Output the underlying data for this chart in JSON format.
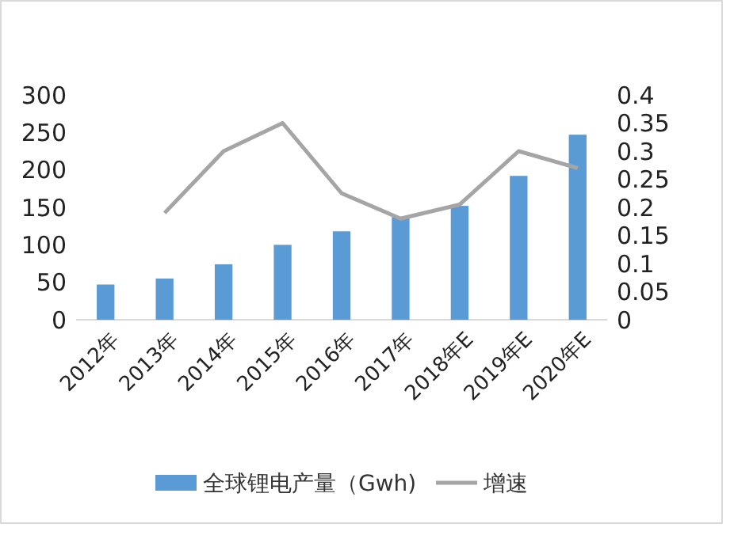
{
  "chart_data": {
    "type": "bar",
    "categories": [
      "2012年",
      "2013年",
      "2014年",
      "2015年",
      "2016年",
      "2017年",
      "2018年E",
      "2019年E",
      "2020年E"
    ],
    "series": [
      {
        "name": "全球锂电产量（Gwh)",
        "color": "#5b9bd5",
        "values": [
          47,
          55,
          74,
          100,
          118,
          137,
          152,
          192,
          247
        ]
      },
      {
        "name": "增速",
        "type": "line",
        "axis": "y2",
        "color": "#a5a5a5",
        "values": [
          null,
          0.19,
          0.3,
          0.35,
          0.225,
          0.18,
          0.205,
          0.3,
          0.27
        ]
      }
    ],
    "ylim": [
      0,
      300
    ],
    "yticks": [
      0,
      50,
      100,
      150,
      200,
      250,
      300
    ],
    "y2lim": [
      0,
      0.4
    ],
    "y2ticks": [
      0,
      0.05,
      0.1,
      0.15,
      0.2,
      0.25,
      0.3,
      0.35,
      0.4
    ],
    "grid": false,
    "legend": "bottom"
  }
}
